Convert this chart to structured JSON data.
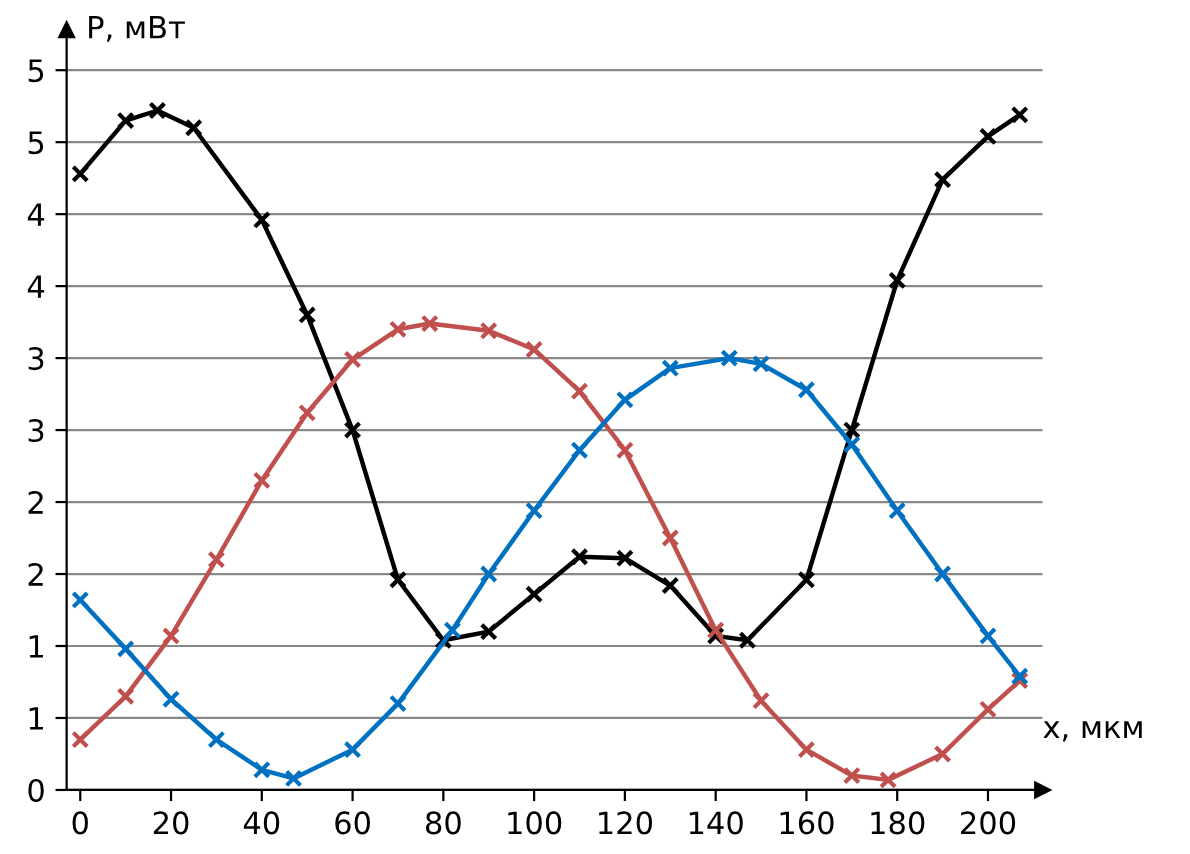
{
  "chart_data": {
    "type": "line",
    "xlabel": "x, мкм",
    "ylabel": "P, мВт",
    "xlim": [
      -3,
      212
    ],
    "ylim": [
      0,
      5.28
    ],
    "xticks": [
      0,
      20,
      40,
      60,
      80,
      100,
      120,
      140,
      160,
      180,
      200
    ],
    "yticks": [
      0,
      {
        "value": 0.5,
        "label": "1"
      },
      1,
      {
        "value": 1.5,
        "label": "2"
      },
      2,
      {
        "value": 2.5,
        "label": "3"
      },
      3,
      {
        "value": 3.5,
        "label": "4"
      },
      4,
      {
        "value": 4.5,
        "label": "5"
      },
      5
    ],
    "grid": "y",
    "marker": "cross",
    "line_style": "solid",
    "legend": false,
    "x": [
      0,
      10,
      17,
      25,
      40,
      50,
      60,
      70,
      80,
      90,
      100,
      110,
      120,
      130,
      140,
      147,
      160,
      170,
      180,
      190,
      200,
      207
    ],
    "series": [
      {
        "color": "#000000",
        "values": [
          4.28,
          4.65,
          4.72,
          4.6,
          3.96,
          3.3,
          2.5,
          1.46,
          1.04,
          1.1,
          1.36,
          1.62,
          1.61,
          1.42,
          1.07,
          1.04,
          1.46,
          2.5,
          3.54,
          4.24,
          4.54,
          4.69
        ]
      },
      {
        "color": "#c0504d",
        "x": [
          0,
          10,
          20,
          30,
          40,
          50,
          60,
          70,
          77,
          90,
          100,
          110,
          120,
          130,
          140,
          150,
          160,
          170,
          178,
          190,
          200,
          207
        ],
        "values": [
          0.35,
          0.65,
          1.07,
          1.6,
          2.15,
          2.62,
          2.99,
          3.2,
          3.24,
          3.19,
          3.06,
          2.77,
          2.36,
          1.75,
          1.11,
          0.62,
          0.28,
          0.1,
          0.07,
          0.25,
          0.56,
          0.76
        ]
      },
      {
        "color": "#0070c0",
        "x": [
          0,
          10,
          20,
          30,
          40,
          47,
          60,
          70,
          82,
          90,
          100,
          110,
          120,
          130,
          143,
          150,
          160,
          170,
          180,
          190,
          200,
          207
        ],
        "values": [
          1.32,
          0.98,
          0.63,
          0.35,
          0.14,
          0.08,
          0.28,
          0.6,
          1.11,
          1.5,
          1.94,
          2.36,
          2.71,
          2.93,
          3.0,
          2.96,
          2.78,
          2.4,
          1.94,
          1.5,
          1.07,
          0.79
        ]
      }
    ]
  }
}
